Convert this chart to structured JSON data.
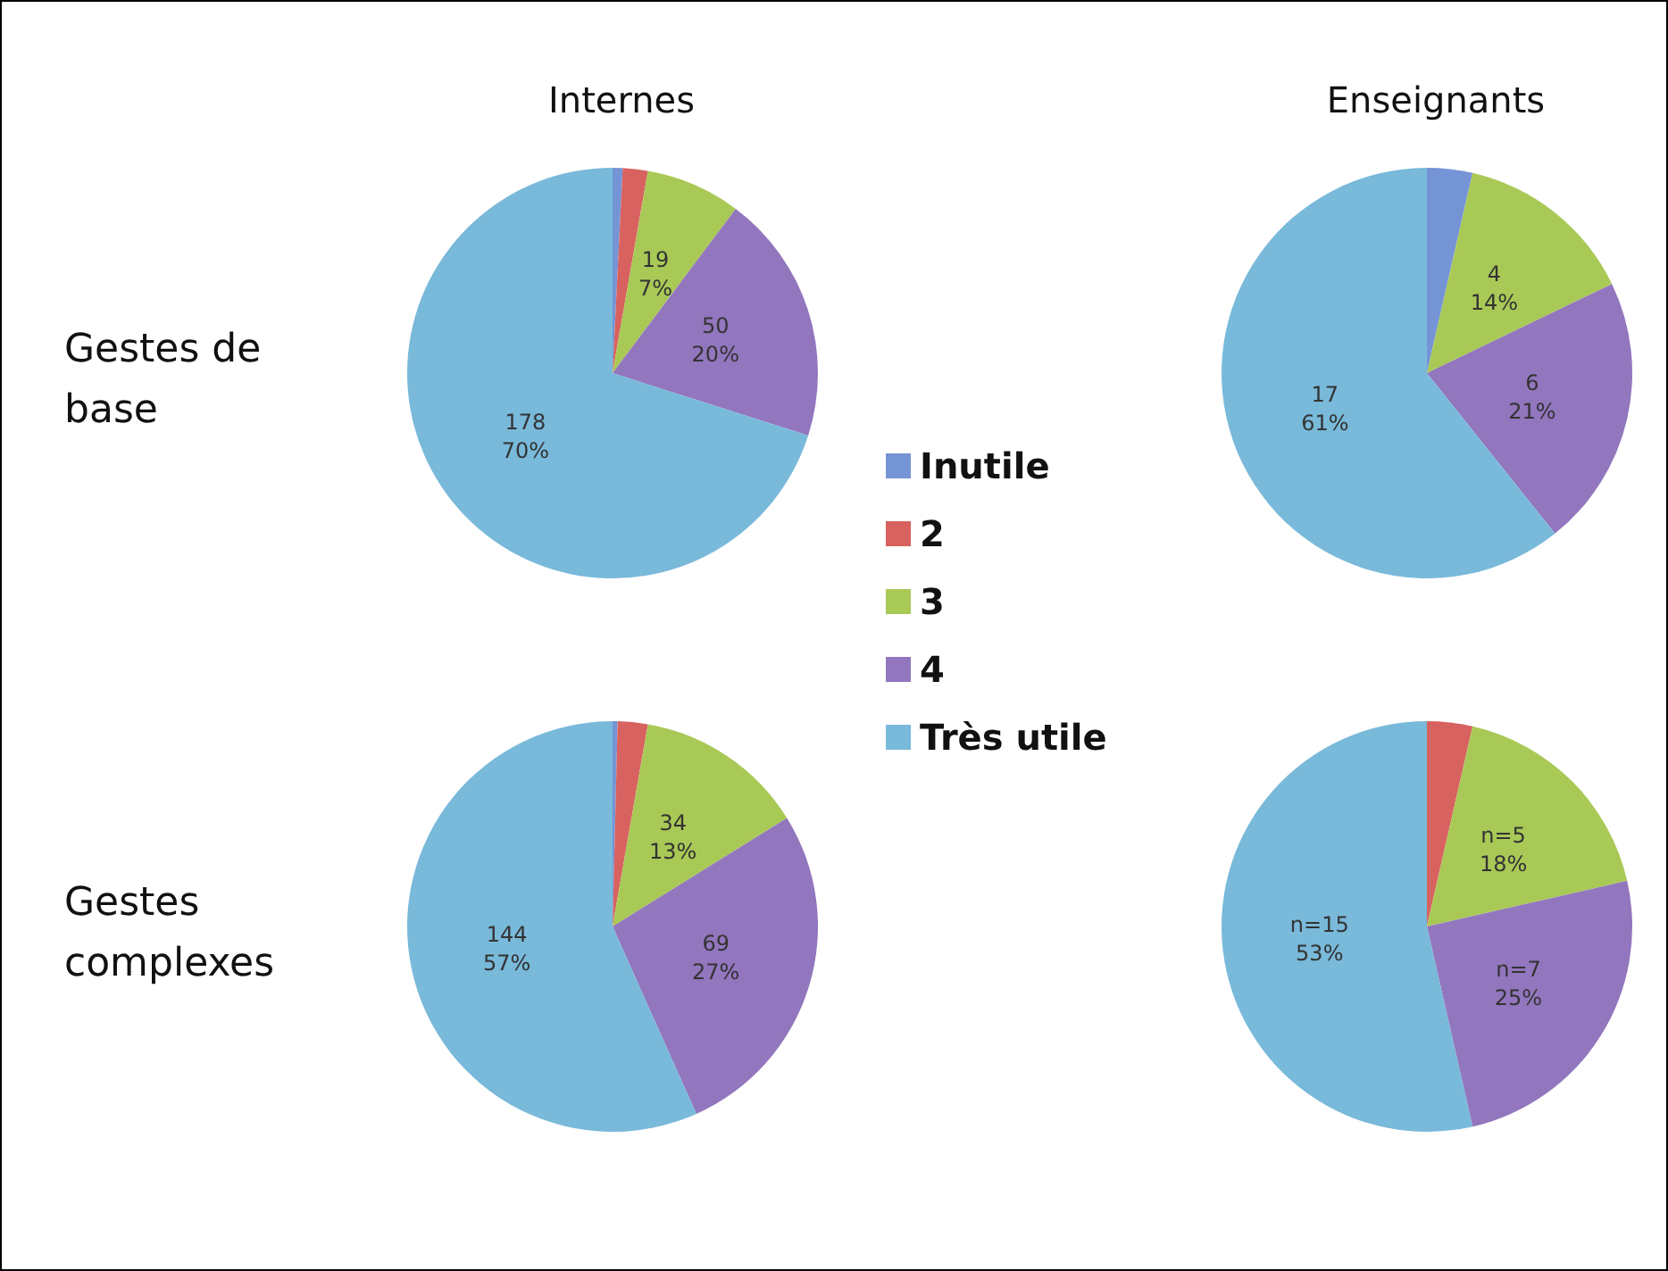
{
  "chart_data": [
    {
      "type": "pie",
      "title": "Internes",
      "ylabel": "Gestes de base",
      "categories": [
        null,
        null,
        null,
        null,
        null
      ],
      "values": [
        2,
        5,
        19,
        50,
        178
      ],
      "colors": [
        "#7594d6",
        "#d8625f",
        "#a9c957",
        "#9276be",
        "#79b9da"
      ],
      "value_labels": [
        null,
        null,
        "19\n7%",
        "50\n20%",
        "178\n70%"
      ],
      "legend": false
    },
    {
      "type": "pie",
      "title": "Enseignants",
      "categories": [
        "Inutile",
        "2",
        "3",
        "4",
        "Très utile"
      ],
      "values": [
        1,
        0,
        4,
        6,
        17
      ],
      "colors": [
        "#7594d6",
        "#d8625f",
        "#a9c957",
        "#9276be",
        "#79b9da"
      ],
      "value_labels": [
        null,
        null,
        "4\n14%",
        "6\n21%",
        "17\n61%"
      ],
      "legend": "left"
    },
    {
      "type": "pie",
      "ylabel": "Gestes complexes",
      "categories": [
        null,
        null,
        null,
        null,
        null
      ],
      "values": [
        1,
        6,
        34,
        69,
        144
      ],
      "colors": [
        "#7594d6",
        "#d8625f",
        "#a9c957",
        "#9276be",
        "#79b9da"
      ],
      "value_labels": [
        null,
        null,
        "34\n13%",
        "69\n27%",
        "144\n57%"
      ],
      "legend": false
    },
    {
      "type": "pie",
      "categories": [
        null,
        null,
        null,
        null,
        null
      ],
      "values": [
        0,
        1,
        5,
        7,
        15
      ],
      "colors": [
        "#7594d6",
        "#d8625f",
        "#a9c957",
        "#9276be",
        "#79b9da"
      ],
      "value_labels": [
        null,
        null,
        "n=5\n18%",
        "n=7\n25%",
        "n=15\n53%"
      ],
      "legend": false
    }
  ]
}
